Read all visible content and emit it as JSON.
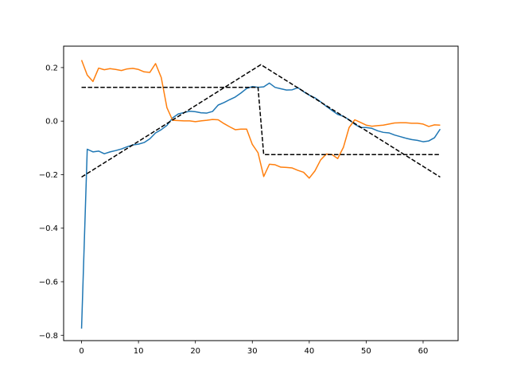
{
  "chart_data": {
    "type": "line",
    "title": "",
    "xlabel": "",
    "ylabel": "",
    "xlim": [
      -3.15,
      66.15
    ],
    "ylim": [
      -0.82,
      0.28
    ],
    "x_ticks": [
      0,
      10,
      20,
      30,
      40,
      50,
      60
    ],
    "y_ticks": [
      -0.8,
      -0.6,
      -0.4,
      -0.2,
      0.0,
      0.2
    ],
    "x_tick_labels": [
      "0",
      "10",
      "20",
      "30",
      "40",
      "50",
      "60"
    ],
    "y_tick_labels": [
      "−0.8",
      "−0.6",
      "−0.4",
      "−0.2",
      "0.0",
      "0.2"
    ],
    "grid": false,
    "series": [
      {
        "color": "#1f77b4",
        "style": "solid",
        "x": [
          0,
          1,
          2,
          3,
          4,
          5,
          6,
          7,
          8,
          9,
          10,
          11,
          12,
          13,
          14,
          15,
          16,
          17,
          18,
          19,
          20,
          21,
          22,
          23,
          24,
          25,
          26,
          27,
          28,
          29,
          30,
          31,
          32,
          33,
          34,
          35,
          36,
          37,
          38,
          39,
          40,
          41,
          42,
          43,
          44,
          45,
          46,
          47,
          48,
          49,
          50,
          51,
          52,
          53,
          54,
          55,
          56,
          57,
          58,
          59,
          60,
          61,
          62,
          63
        ],
        "values": [
          -0.775,
          -0.105,
          -0.115,
          -0.112,
          -0.122,
          -0.115,
          -0.11,
          -0.104,
          -0.096,
          -0.089,
          -0.086,
          -0.08,
          -0.066,
          -0.044,
          -0.032,
          -0.016,
          0.012,
          0.027,
          0.032,
          0.037,
          0.035,
          0.031,
          0.03,
          0.036,
          0.06,
          0.069,
          0.08,
          0.09,
          0.105,
          0.122,
          0.129,
          0.126,
          0.128,
          0.142,
          0.126,
          0.121,
          0.116,
          0.117,
          0.125,
          0.11,
          0.097,
          0.087,
          0.072,
          0.055,
          0.04,
          0.025,
          0.018,
          0.005,
          -0.012,
          -0.024,
          -0.024,
          -0.027,
          -0.036,
          -0.042,
          -0.044,
          -0.052,
          -0.058,
          -0.064,
          -0.069,
          -0.072,
          -0.077,
          -0.074,
          -0.062,
          -0.03
        ]
      },
      {
        "color": "#ff7f0e",
        "style": "solid",
        "x": [
          0,
          1,
          2,
          3,
          4,
          5,
          6,
          7,
          8,
          9,
          10,
          11,
          12,
          13,
          14,
          15,
          16,
          17,
          18,
          19,
          20,
          21,
          22,
          23,
          24,
          25,
          26,
          27,
          28,
          29,
          30,
          31,
          32,
          33,
          34,
          35,
          36,
          37,
          38,
          39,
          40,
          41,
          42,
          43,
          44,
          45,
          46,
          47,
          48,
          49,
          50,
          51,
          52,
          53,
          54,
          55,
          56,
          57,
          58,
          59,
          60,
          61,
          62,
          63
        ],
        "values": [
          0.228,
          0.172,
          0.148,
          0.198,
          0.192,
          0.196,
          0.193,
          0.189,
          0.195,
          0.197,
          0.193,
          0.184,
          0.182,
          0.215,
          0.163,
          0.05,
          0.003,
          0.002,
          0.001,
          0.001,
          -0.002,
          0.001,
          0.003,
          0.006,
          0.005,
          -0.009,
          -0.021,
          -0.032,
          -0.03,
          -0.03,
          -0.087,
          -0.118,
          -0.207,
          -0.161,
          -0.163,
          -0.172,
          -0.173,
          -0.175,
          -0.184,
          -0.191,
          -0.213,
          -0.186,
          -0.145,
          -0.123,
          -0.125,
          -0.14,
          -0.098,
          -0.024,
          0.005,
          -0.005,
          -0.015,
          -0.019,
          -0.017,
          -0.015,
          -0.011,
          -0.007,
          -0.006,
          -0.006,
          -0.008,
          -0.008,
          -0.011,
          -0.02,
          -0.014,
          -0.015
        ]
      },
      {
        "color": "#000000",
        "style": "dashed",
        "x": [
          0,
          31,
          32,
          63
        ],
        "values": [
          0.126,
          0.126,
          -0.125,
          -0.125
        ]
      },
      {
        "color": "#000000",
        "style": "dashed",
        "x": [
          0,
          31.5,
          63
        ],
        "values": [
          -0.209,
          0.211,
          -0.209
        ]
      }
    ]
  }
}
